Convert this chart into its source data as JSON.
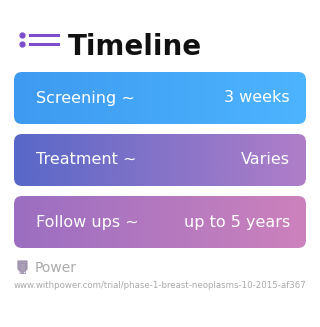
{
  "title": "Timeline",
  "title_fontsize": 20,
  "title_fontweight": "bold",
  "title_color": "#111111",
  "icon_color": "#7c4dcc",
  "background_color": "#ffffff",
  "rows": [
    {
      "left_text": "Screening ~",
      "right_text": "3 weeks"
    },
    {
      "left_text": "Treatment ~",
      "right_text": "Varies"
    },
    {
      "left_text": "Follow ups ~",
      "right_text": "up to 5 years"
    }
  ],
  "row_gradient_colors": [
    [
      "#3d9af0",
      "#4db4ff"
    ],
    [
      "#5868c8",
      "#b07ec8"
    ],
    [
      "#9b6ec2",
      "#cc82bc"
    ]
  ],
  "text_color": "#ffffff",
  "text_fontsize": 11.5,
  "footer_text": "Power",
  "footer_url": "www.withpower.com/trial/phase-1-breast-neoplasms-10-2015-af367",
  "footer_color": "#aaaaaa",
  "footer_fontsize": 6.2,
  "footer_logo_color": "#9b8faa"
}
